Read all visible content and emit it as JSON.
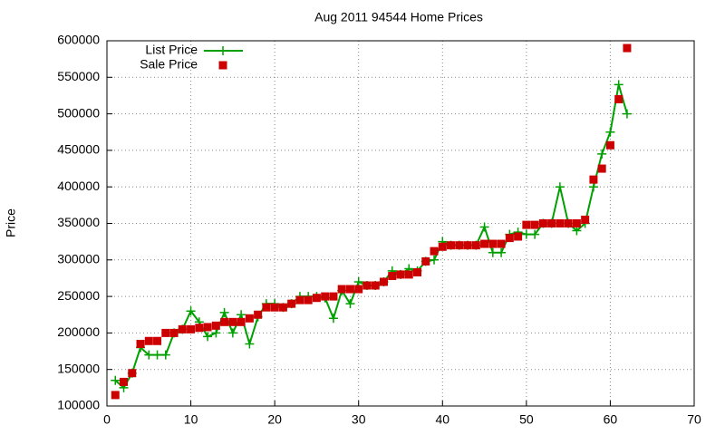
{
  "chart_data": {
    "type": "line",
    "title": "Aug 2011 94544 Home Prices",
    "y_label": "Price",
    "x": [
      1,
      2,
      3,
      4,
      5,
      6,
      7,
      8,
      9,
      10,
      11,
      12,
      13,
      14,
      15,
      16,
      17,
      18,
      19,
      20,
      21,
      22,
      23,
      24,
      25,
      26,
      27,
      28,
      29,
      30,
      31,
      32,
      33,
      34,
      35,
      36,
      37,
      38,
      39,
      40,
      41,
      42,
      43,
      44,
      45,
      46,
      47,
      48,
      49,
      50,
      51,
      52,
      53,
      54,
      55,
      56,
      57,
      58,
      59,
      60,
      61,
      62
    ],
    "series": [
      {
        "name": "List Price",
        "color": "#00a000",
        "marker": "plus",
        "line": true,
        "values": [
          135000,
          125000,
          145000,
          180000,
          170000,
          170000,
          170000,
          200000,
          205000,
          230000,
          215000,
          195000,
          200000,
          228000,
          200000,
          225000,
          185000,
          222000,
          240000,
          240000,
          235000,
          240000,
          250000,
          250000,
          250000,
          248000,
          220000,
          258000,
          240000,
          270000,
          265000,
          265000,
          270000,
          285000,
          280000,
          288000,
          285000,
          298000,
          300000,
          325000,
          320000,
          320000,
          320000,
          320000,
          345000,
          310000,
          310000,
          335000,
          338000,
          335000,
          335000,
          350000,
          350000,
          400000,
          350000,
          340000,
          350000,
          400000,
          445000,
          475000,
          540000,
          500000
        ]
      },
      {
        "name": "Sale Price",
        "color": "#cc0000",
        "marker": "square",
        "line": false,
        "values": [
          115000,
          133000,
          145000,
          185000,
          189000,
          189000,
          200000,
          200000,
          205000,
          205000,
          207000,
          208000,
          210000,
          215000,
          215000,
          215000,
          220000,
          225000,
          235000,
          235000,
          235000,
          240000,
          245000,
          245000,
          248000,
          250000,
          250000,
          260000,
          260000,
          260000,
          265000,
          265000,
          270000,
          278000,
          280000,
          280000,
          283000,
          298000,
          312000,
          318000,
          320000,
          320000,
          320000,
          320000,
          322000,
          322000,
          322000,
          330000,
          332000,
          348000,
          348000,
          350000,
          350000,
          350000,
          350000,
          350000,
          355000,
          410000,
          425000,
          457000,
          520000,
          590000
        ]
      }
    ],
    "xlim": [
      0,
      70
    ],
    "xticks": [
      0,
      10,
      20,
      30,
      40,
      50,
      60,
      70
    ],
    "ylim": [
      100000,
      600000
    ],
    "yticks": [
      100000,
      150000,
      200000,
      250000,
      300000,
      350000,
      400000,
      450000,
      500000,
      550000,
      600000
    ],
    "grid": true,
    "legend": "top-left"
  }
}
